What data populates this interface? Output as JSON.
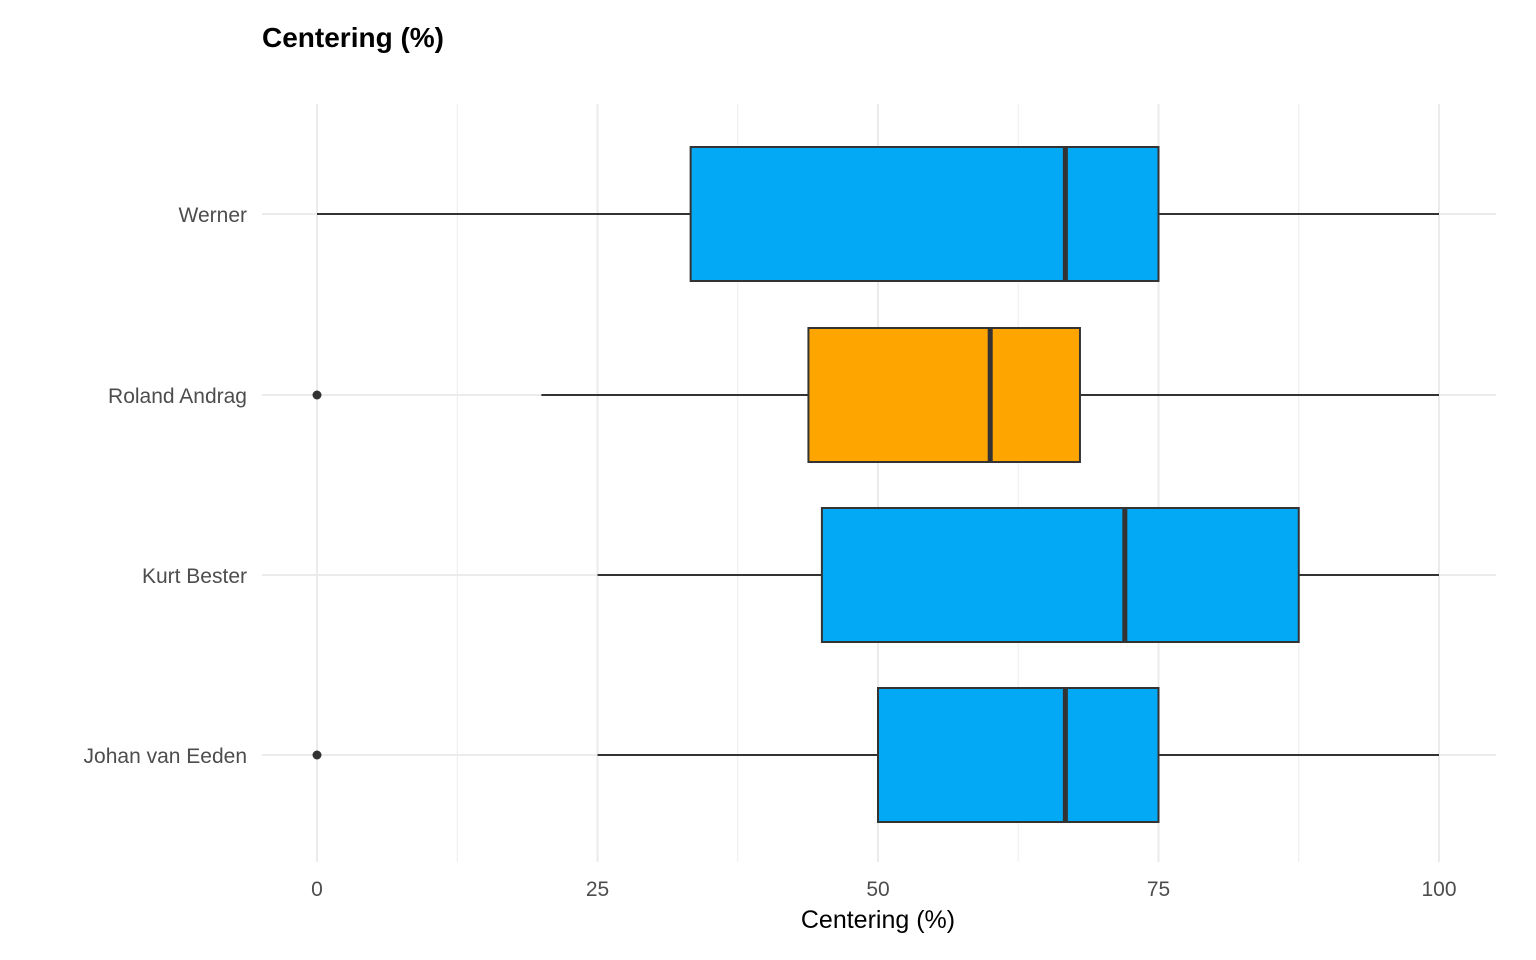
{
  "chart_data": {
    "type": "boxplot",
    "orientation": "horizontal",
    "title": "Centering (%)",
    "xlabel": "Centering (%)",
    "ylabel": "",
    "xlim": [
      -2.5,
      105
    ],
    "x_ticks": [
      0,
      25,
      50,
      75,
      100
    ],
    "grid": true,
    "legend": "none",
    "categories": [
      "Werner",
      "Roland Andrag",
      "Kurt Bester",
      "Johan van Eeden"
    ],
    "boxes": [
      {
        "category": "Werner",
        "whisker_low": 0,
        "q1": 33.3,
        "median": 66.7,
        "q3": 75,
        "whisker_high": 100,
        "outliers": [],
        "color": "#03A9F4"
      },
      {
        "category": "Roland Andrag",
        "whisker_low": 20,
        "q1": 43.8,
        "median": 60,
        "q3": 68,
        "whisker_high": 100,
        "outliers": [
          0
        ],
        "color": "#FFA500"
      },
      {
        "category": "Kurt Bester",
        "whisker_low": 25,
        "q1": 45,
        "median": 72,
        "q3": 87.5,
        "whisker_high": 100,
        "outliers": [],
        "color": "#03A9F4"
      },
      {
        "category": "Johan van Eeden",
        "whisker_low": 25,
        "q1": 50,
        "median": 66.7,
        "q3": 75,
        "whisker_high": 100,
        "outliers": [
          0
        ],
        "color": "#03A9F4"
      }
    ]
  }
}
